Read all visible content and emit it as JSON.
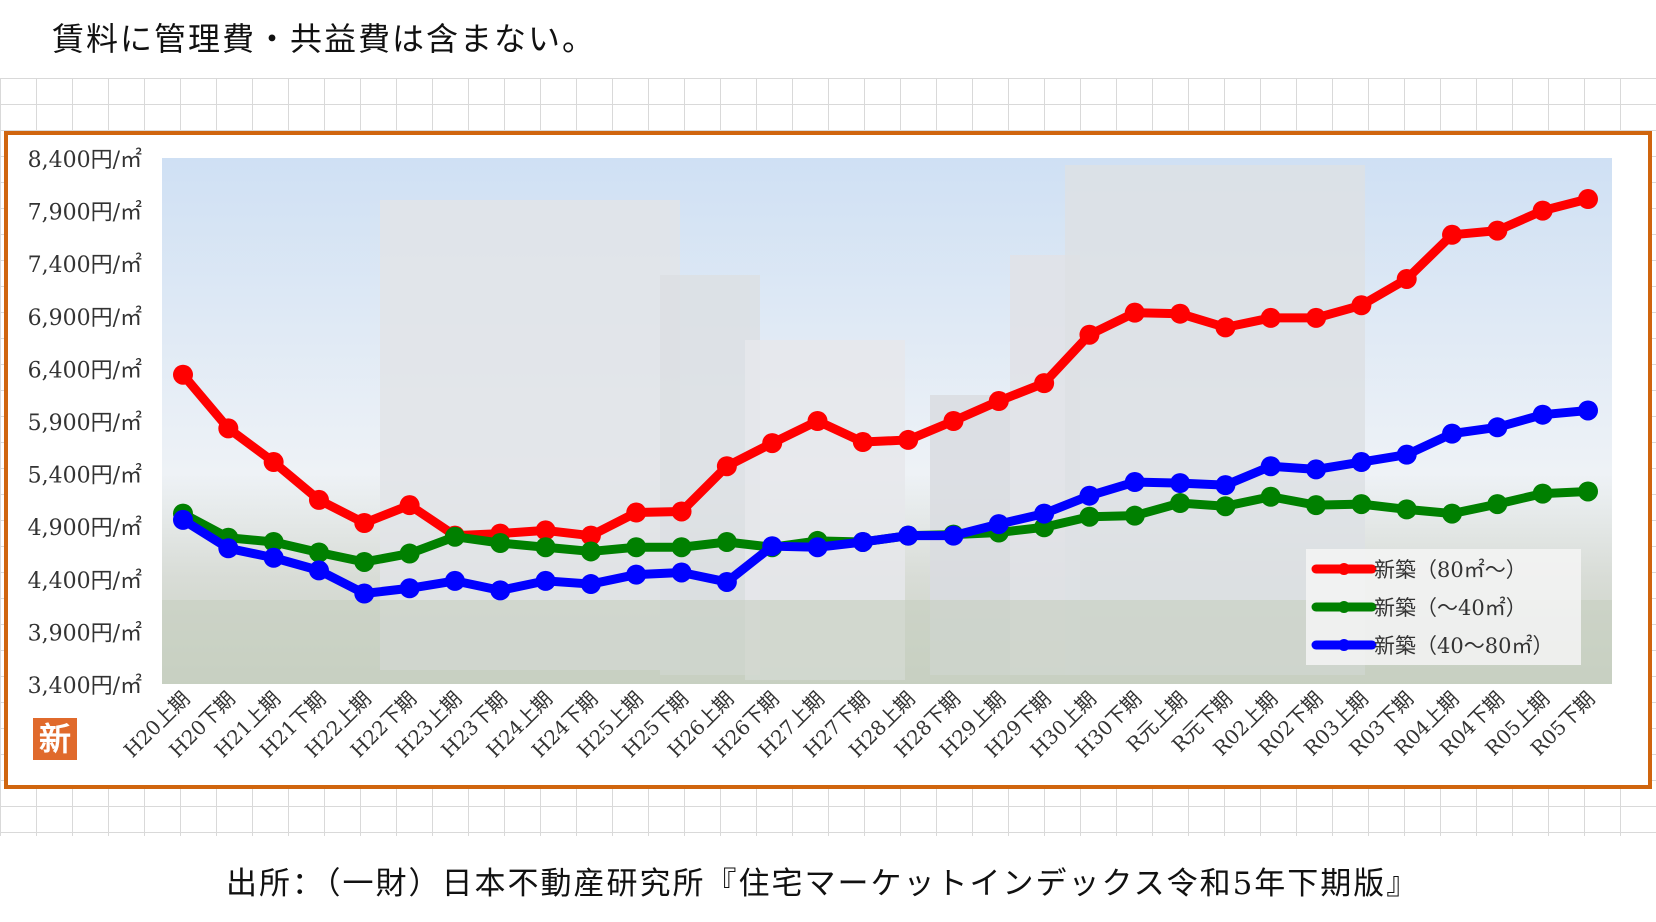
{
  "header": {
    "note": "賃料に管理費・共益費は含まない。"
  },
  "footer": {
    "source": "出所：（一財）日本不動産研究所『住宅マーケットインデックス令和5年下期版』"
  },
  "badge": {
    "label": "新"
  },
  "colors": {
    "frame": "#d0650e",
    "red": "#ff0000",
    "green": "#008000",
    "blue": "#0000ff"
  },
  "chart_data": {
    "type": "line",
    "title": "",
    "xlabel": "",
    "ylabel": "",
    "ylim": [
      3400,
      8400
    ],
    "yticks": [
      3400,
      3900,
      4400,
      4900,
      5400,
      5900,
      6400,
      6900,
      7400,
      7900,
      8400
    ],
    "ytick_labels": [
      "3,400円/㎡",
      "3,900円/㎡",
      "4,400円/㎡",
      "4,900円/㎡",
      "5,400円/㎡",
      "5,900円/㎡",
      "6,400円/㎡",
      "6,900円/㎡",
      "7,400円/㎡",
      "7,900円/㎡",
      "8,400円/㎡"
    ],
    "legend_position": "bottom-right",
    "categories": [
      "H20上期",
      "H20下期",
      "H21上期",
      "H21下期",
      "H22上期",
      "H22下期",
      "H23上期",
      "H23下期",
      "H24上期",
      "H24下期",
      "H25上期",
      "H25下期",
      "H26上期",
      "H26下期",
      "H27上期",
      "H27下期",
      "H28上期",
      "H28下期",
      "H29上期",
      "H29下期",
      "H30上期",
      "H30下期",
      "R元上期",
      "R元下期",
      "R02上期",
      "R02下期",
      "R03上期",
      "R03下期",
      "R04上期",
      "R04下期",
      "R05上期",
      "R05下期"
    ],
    "series": [
      {
        "name": "新築（80㎡～）",
        "color": "#ff0000",
        "values": [
          6340,
          5830,
          5510,
          5150,
          4930,
          5100,
          4810,
          4830,
          4860,
          4810,
          5030,
          5040,
          5470,
          5690,
          5900,
          5700,
          5720,
          5900,
          6090,
          6260,
          6720,
          6930,
          6920,
          6790,
          6880,
          6880,
          7000,
          7250,
          7670,
          7710,
          7900,
          8010
        ]
      },
      {
        "name": "新築（～40㎡）",
        "color": "#008000",
        "values": [
          5020,
          4790,
          4750,
          4650,
          4560,
          4640,
          4800,
          4740,
          4700,
          4660,
          4700,
          4700,
          4750,
          4700,
          4760,
          4750,
          4810,
          4820,
          4840,
          4890,
          4990,
          5000,
          5120,
          5090,
          5180,
          5100,
          5110,
          5060,
          5020,
          5110,
          5210,
          5230
        ]
      },
      {
        "name": "新築（40～80㎡）",
        "color": "#0000ff",
        "values": [
          4960,
          4690,
          4600,
          4480,
          4260,
          4310,
          4380,
          4290,
          4380,
          4350,
          4440,
          4460,
          4370,
          4710,
          4700,
          4750,
          4810,
          4810,
          4920,
          5020,
          5190,
          5320,
          5310,
          5290,
          5470,
          5440,
          5510,
          5580,
          5780,
          5840,
          5960,
          6000
        ]
      }
    ]
  }
}
